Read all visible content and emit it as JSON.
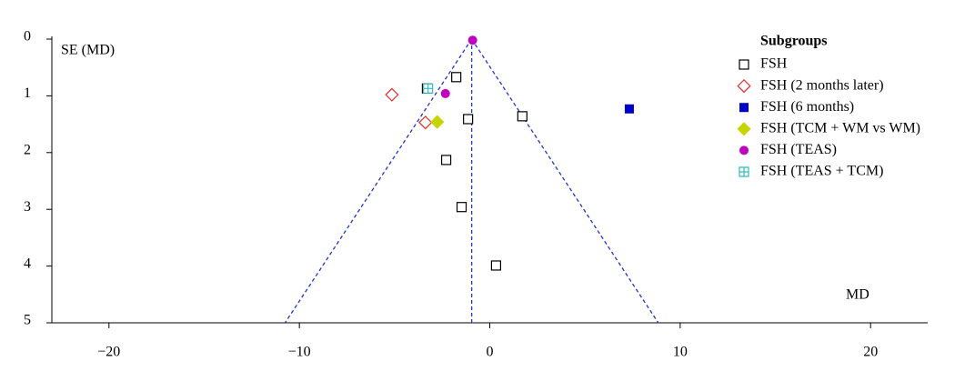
{
  "chart_data": {
    "type": "scatter",
    "title": "Subgroups",
    "xlabel": "MD",
    "ylabel": "SE (MD)",
    "xlim": [
      -23,
      23
    ],
    "ylim": [
      0,
      5
    ],
    "y_inverted": true,
    "xticks": [
      {
        "value": -20,
        "label": "−20"
      },
      {
        "value": -10,
        "label": "−10"
      },
      0,
      10,
      20
    ],
    "yticks": [
      0,
      1,
      2,
      3,
      4,
      5
    ],
    "series": [
      {
        "name": "FSH",
        "color": "#000000",
        "marker": "open-square",
        "x": [
          -1.76,
          -1.14,
          1.71,
          -2.29,
          -1.48,
          0.33,
          -3.3
        ],
        "values": [
          0.67,
          1.41,
          1.36,
          2.13,
          2.96,
          3.99,
          0.87
        ]
      },
      {
        "name": "FSH (2 months later)",
        "color": "#e03030",
        "marker": "open-diamond",
        "x": [
          -5.14,
          -3.38
        ],
        "values": [
          0.98,
          1.47
        ]
      },
      {
        "name": "FSH (6 months)",
        "color": "#0000cc",
        "marker": "filled-square",
        "x": [
          7.33
        ],
        "values": [
          1.23
        ]
      },
      {
        "name": "FSH (TCM + WM vs WM)",
        "color": "#c8d400",
        "marker": "filled-diamond",
        "x": [
          -2.76
        ],
        "values": [
          1.46
        ]
      },
      {
        "name": "FSH (TEAS)",
        "color": "#c000c0",
        "marker": "filled-circle",
        "x": [
          -2.33,
          -0.9
        ],
        "values": [
          0.96,
          0.02
        ]
      },
      {
        "name": "FSH (TEAS + TCM)",
        "color": "#33bbbb",
        "marker": "grid-square",
        "x": [
          -3.24
        ],
        "values": [
          0.87
        ]
      }
    ],
    "reference_lines": [
      {
        "x": [
          -0.95,
          -0.95
        ],
        "values": [
          0,
          5
        ]
      },
      {
        "x": [
          -0.95,
          -10.75
        ],
        "values": [
          0,
          5
        ]
      },
      {
        "x": [
          -0.95,
          8.85
        ],
        "values": [
          0,
          5
        ]
      }
    ],
    "reference_color": "#2233cc"
  }
}
